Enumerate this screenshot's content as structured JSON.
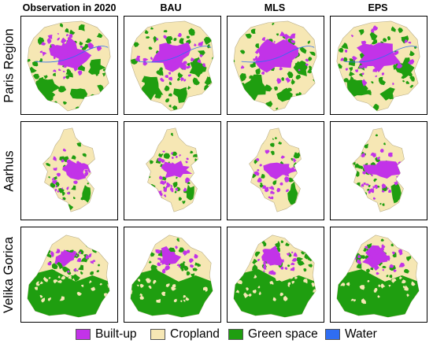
{
  "columns": [
    "Observation in 2020",
    "BAU",
    "MLS",
    "EPS"
  ],
  "rows": [
    "Paris Region",
    "Aarhus",
    "Velika Gorica"
  ],
  "legend": [
    {
      "label": "Built-up",
      "color": "#c233e8"
    },
    {
      "label": "Cropland",
      "color": "#f6e7b4"
    },
    {
      "label": "Green space",
      "color": "#1f9e10"
    },
    {
      "label": "Water",
      "color": "#2f6df2"
    }
  ]
}
